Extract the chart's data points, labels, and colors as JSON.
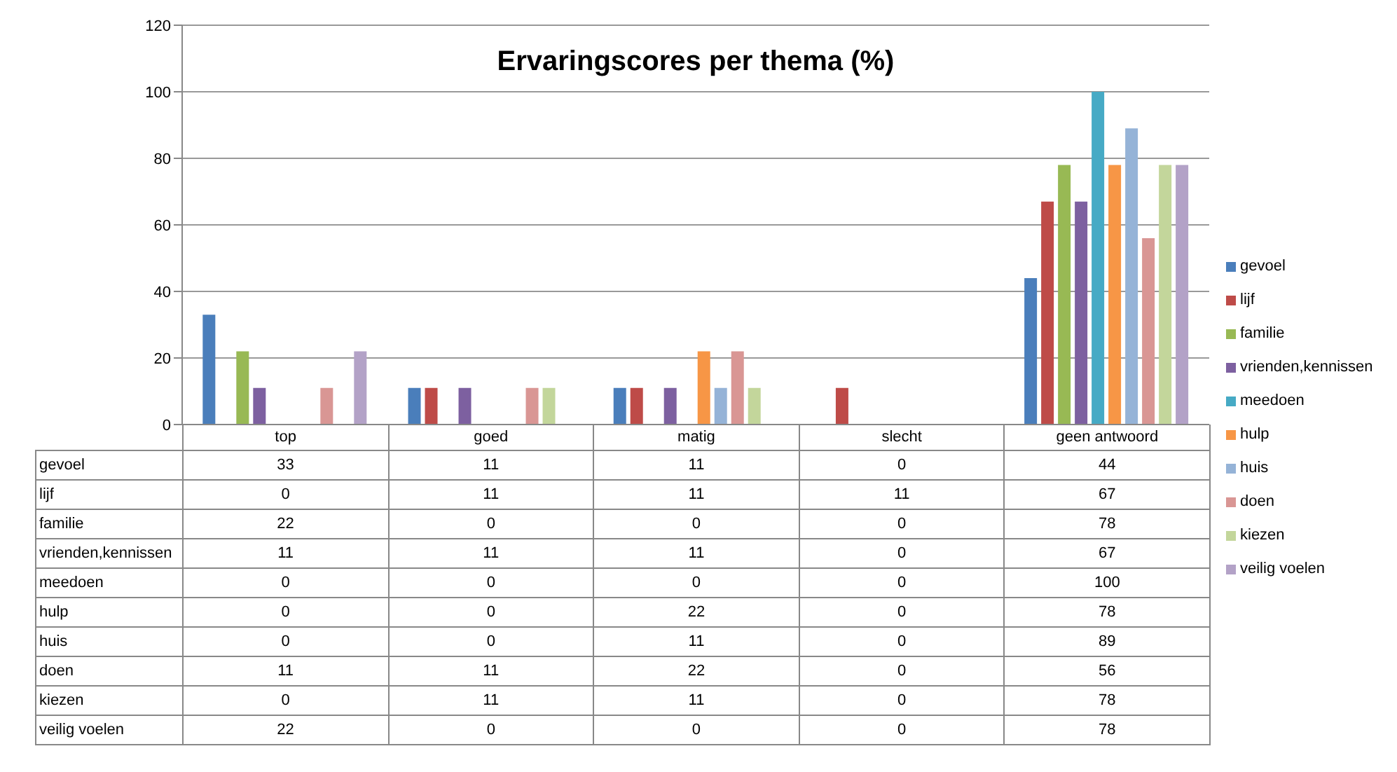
{
  "chart_data": {
    "type": "bar",
    "title": "Ervaringscores per thema (%)",
    "categories": [
      "top",
      "goed",
      "matig",
      "slecht",
      "geen antwoord"
    ],
    "series": [
      {
        "name": "gevoel",
        "color": "#4a7ebb",
        "values": [
          33,
          11,
          11,
          0,
          44
        ]
      },
      {
        "name": "lijf",
        "color": "#be4b48",
        "values": [
          0,
          11,
          11,
          11,
          67
        ]
      },
      {
        "name": "familie",
        "color": "#98b954",
        "values": [
          22,
          0,
          0,
          0,
          78
        ]
      },
      {
        "name": "vrienden,kennissen",
        "color": "#7d60a0",
        "values": [
          11,
          11,
          11,
          0,
          67
        ]
      },
      {
        "name": "meedoen",
        "color": "#46aac5",
        "values": [
          0,
          0,
          0,
          0,
          100
        ]
      },
      {
        "name": "hulp",
        "color": "#f79646",
        "values": [
          0,
          0,
          22,
          0,
          78
        ]
      },
      {
        "name": "huis",
        "color": "#95b3d7",
        "values": [
          0,
          0,
          11,
          0,
          89
        ]
      },
      {
        "name": "doen",
        "color": "#d99694",
        "values": [
          11,
          11,
          22,
          0,
          56
        ]
      },
      {
        "name": "kiezen",
        "color": "#c3d69b",
        "values": [
          0,
          11,
          11,
          0,
          78
        ]
      },
      {
        "name": "veilig voelen",
        "color": "#b3a2c7",
        "values": [
          22,
          0,
          0,
          0,
          78
        ]
      }
    ],
    "ylim": [
      0,
      120
    ],
    "yticks": [
      0,
      20,
      40,
      60,
      80,
      100,
      120
    ],
    "grid": "y",
    "legend": "right",
    "data_labels": true
  }
}
